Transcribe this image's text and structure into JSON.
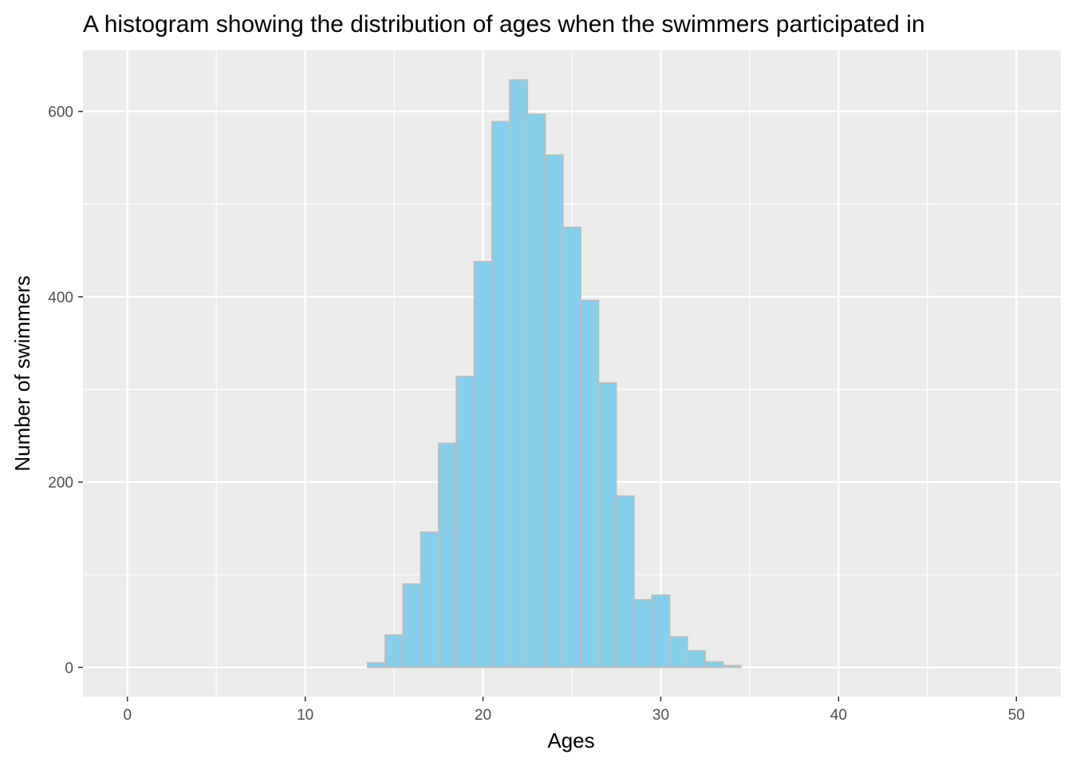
{
  "chart_data": {
    "type": "bar",
    "title": "A histogram showing the distribution of ages when the swimmers participated in",
    "xlabel": "Ages",
    "ylabel": "Number of swimmers",
    "xlim": [
      -2.5,
      52.5
    ],
    "ylim": [
      -31.5,
      666
    ],
    "x_ticks": [
      0,
      10,
      20,
      30,
      40,
      50
    ],
    "y_ticks": [
      0,
      200,
      400,
      600
    ],
    "bin_width": 1,
    "bin_start": 0.5,
    "values": [
      0,
      0,
      0,
      0,
      0,
      0,
      0,
      0,
      0,
      0,
      0,
      0,
      0,
      5,
      35,
      90,
      146,
      242,
      314,
      438,
      589,
      634,
      597,
      553,
      475,
      396,
      307,
      185,
      73,
      78,
      33,
      18,
      6,
      2,
      0,
      0,
      0,
      0,
      0,
      0,
      0,
      0,
      0,
      0,
      0,
      0,
      0,
      0,
      0
    ],
    "colors": {
      "bar_fill": "#87ceeb",
      "bar_outline": "#bebebe",
      "panel_background": "#ebebeb",
      "grid": "#ffffff"
    },
    "grid": true,
    "legend": "none"
  }
}
